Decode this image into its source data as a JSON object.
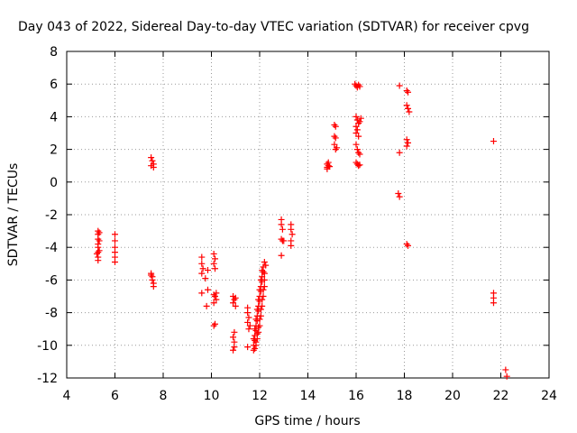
{
  "chart_data": {
    "type": "scatter",
    "title": "Day 043 of 2022, Sidereal Day-to-day VTEC variation (SDTVAR) for receiver cpvg",
    "xlabel": "GPS time / hours",
    "ylabel": "SDTVAR / TECUs",
    "xlim": [
      4,
      24
    ],
    "ylim": [
      -12,
      8
    ],
    "xticks": [
      4,
      6,
      8,
      10,
      12,
      14,
      16,
      18,
      20,
      22,
      24
    ],
    "yticks": [
      -12,
      -10,
      -8,
      -6,
      -4,
      -2,
      0,
      2,
      4,
      6,
      8
    ],
    "grid": true,
    "marker": "+",
    "color": "#ff0000",
    "series": [
      {
        "name": "SDTVAR",
        "points": [
          [
            5.3,
            -3.0
          ],
          [
            5.3,
            -3.2
          ],
          [
            5.3,
            -3.5
          ],
          [
            5.3,
            -3.8
          ],
          [
            5.3,
            -4.0
          ],
          [
            5.3,
            -4.3
          ],
          [
            5.3,
            -4.6
          ],
          [
            5.3,
            -4.8
          ],
          [
            5.35,
            -3.1
          ],
          [
            5.35,
            -3.6
          ],
          [
            5.35,
            -4.2
          ],
          [
            5.25,
            -4.4
          ],
          [
            6.0,
            -3.2
          ],
          [
            6.0,
            -3.6
          ],
          [
            6.0,
            -4.0
          ],
          [
            6.0,
            -4.3
          ],
          [
            6.0,
            -4.6
          ],
          [
            6.0,
            -4.9
          ],
          [
            7.5,
            1.5
          ],
          [
            7.55,
            1.3
          ],
          [
            7.6,
            1.1
          ],
          [
            7.6,
            0.9
          ],
          [
            7.5,
            1.0
          ],
          [
            7.5,
            -5.6
          ],
          [
            7.55,
            -5.8
          ],
          [
            7.55,
            -6.0
          ],
          [
            7.6,
            -6.2
          ],
          [
            7.6,
            -6.4
          ],
          [
            7.5,
            -5.7
          ],
          [
            9.6,
            -4.6
          ],
          [
            9.6,
            -5.0
          ],
          [
            9.65,
            -5.3
          ],
          [
            9.6,
            -5.6
          ],
          [
            9.6,
            -6.8
          ],
          [
            9.75,
            -5.9
          ],
          [
            9.85,
            -6.6
          ],
          [
            9.8,
            -7.6
          ],
          [
            9.85,
            -5.4
          ],
          [
            10.1,
            -4.4
          ],
          [
            10.15,
            -4.7
          ],
          [
            10.1,
            -5.0
          ],
          [
            10.15,
            -5.3
          ],
          [
            10.1,
            -6.9
          ],
          [
            10.15,
            -7.0
          ],
          [
            10.2,
            -7.2
          ],
          [
            10.1,
            -7.4
          ],
          [
            10.15,
            -8.7
          ],
          [
            10.1,
            -8.8
          ],
          [
            10.2,
            -6.8
          ],
          [
            10.9,
            -7.0
          ],
          [
            10.95,
            -7.2
          ],
          [
            10.9,
            -7.4
          ],
          [
            11.0,
            -7.6
          ],
          [
            10.95,
            -9.2
          ],
          [
            10.9,
            -9.5
          ],
          [
            10.95,
            -9.8
          ],
          [
            10.95,
            -10.1
          ],
          [
            10.9,
            -10.3
          ],
          [
            11.0,
            -7.1
          ],
          [
            11.5,
            -7.7
          ],
          [
            11.5,
            -8.0
          ],
          [
            11.55,
            -8.3
          ],
          [
            11.5,
            -8.6
          ],
          [
            11.55,
            -9.0
          ],
          [
            11.5,
            -10.1
          ],
          [
            11.6,
            -8.8
          ],
          [
            11.75,
            -10.3
          ],
          [
            11.75,
            -10.0
          ],
          [
            11.8,
            -9.7
          ],
          [
            11.8,
            -9.4
          ],
          [
            11.85,
            -9.1
          ],
          [
            11.85,
            -8.8
          ],
          [
            11.9,
            -8.5
          ],
          [
            11.9,
            -8.2
          ],
          [
            11.95,
            -7.9
          ],
          [
            11.95,
            -7.6
          ],
          [
            12.0,
            -7.3
          ],
          [
            12.0,
            -7.0
          ],
          [
            12.05,
            -6.7
          ],
          [
            12.05,
            -6.4
          ],
          [
            12.1,
            -6.1
          ],
          [
            12.1,
            -5.8
          ],
          [
            12.15,
            -5.5
          ],
          [
            12.15,
            -5.2
          ],
          [
            12.2,
            -4.9
          ],
          [
            11.8,
            -10.2
          ],
          [
            11.85,
            -9.8
          ],
          [
            11.9,
            -9.3
          ],
          [
            11.95,
            -8.9
          ],
          [
            12.0,
            -8.4
          ],
          [
            12.05,
            -7.8
          ],
          [
            12.1,
            -7.2
          ],
          [
            12.15,
            -6.6
          ],
          [
            12.2,
            -6.0
          ],
          [
            11.75,
            -9.6
          ],
          [
            11.8,
            -9.0
          ],
          [
            11.85,
            -8.4
          ],
          [
            11.9,
            -7.8
          ],
          [
            11.95,
            -7.2
          ],
          [
            12.0,
            -6.6
          ],
          [
            12.05,
            -6.0
          ],
          [
            12.1,
            -5.4
          ],
          [
            11.85,
            -10.0
          ],
          [
            11.9,
            -9.6
          ],
          [
            11.95,
            -9.2
          ],
          [
            12.0,
            -8.8
          ],
          [
            12.05,
            -8.2
          ],
          [
            12.1,
            -7.6
          ],
          [
            12.15,
            -7.0
          ],
          [
            12.2,
            -6.4
          ],
          [
            12.2,
            -5.6
          ],
          [
            12.25,
            -5.1
          ],
          [
            12.9,
            -2.3
          ],
          [
            12.9,
            -2.6
          ],
          [
            12.95,
            -2.9
          ],
          [
            12.9,
            -3.5
          ],
          [
            12.95,
            -3.6
          ],
          [
            13.0,
            -3.6
          ],
          [
            12.9,
            -4.5
          ],
          [
            13.3,
            -2.6
          ],
          [
            13.3,
            -2.9
          ],
          [
            13.35,
            -3.2
          ],
          [
            13.3,
            -3.6
          ],
          [
            13.3,
            -3.9
          ],
          [
            14.8,
            0.8
          ],
          [
            14.8,
            0.9
          ],
          [
            14.85,
            1.0
          ],
          [
            14.8,
            1.1
          ],
          [
            14.85,
            1.2
          ],
          [
            14.9,
            0.95
          ],
          [
            15.1,
            3.5
          ],
          [
            15.15,
            3.4
          ],
          [
            15.1,
            2.8
          ],
          [
            15.15,
            2.7
          ],
          [
            15.1,
            2.3
          ],
          [
            15.15,
            2.0
          ],
          [
            15.2,
            2.1
          ],
          [
            15.95,
            6.0
          ],
          [
            16.0,
            5.9
          ],
          [
            16.05,
            5.8
          ],
          [
            16.1,
            5.95
          ],
          [
            16.15,
            5.85
          ],
          [
            16.0,
            4.0
          ],
          [
            16.05,
            3.8
          ],
          [
            16.1,
            3.6
          ],
          [
            16.0,
            3.4
          ],
          [
            16.05,
            3.2
          ],
          [
            16.0,
            3.0
          ],
          [
            16.1,
            2.8
          ],
          [
            16.15,
            3.7
          ],
          [
            16.2,
            3.9
          ],
          [
            16.0,
            2.3
          ],
          [
            16.05,
            2.0
          ],
          [
            16.1,
            1.8
          ],
          [
            16.15,
            1.7
          ],
          [
            16.0,
            1.2
          ],
          [
            16.05,
            1.1
          ],
          [
            16.1,
            1.0
          ],
          [
            16.15,
            1.05
          ],
          [
            17.8,
            5.9
          ],
          [
            17.8,
            1.8
          ],
          [
            17.75,
            -0.7
          ],
          [
            17.8,
            -0.9
          ],
          [
            18.1,
            5.6
          ],
          [
            18.15,
            5.5
          ],
          [
            18.1,
            4.7
          ],
          [
            18.15,
            4.5
          ],
          [
            18.2,
            4.3
          ],
          [
            18.1,
            2.6
          ],
          [
            18.15,
            2.4
          ],
          [
            18.1,
            2.2
          ],
          [
            18.1,
            -3.8
          ],
          [
            18.15,
            -3.9
          ],
          [
            21.7,
            2.5
          ],
          [
            21.7,
            -6.8
          ],
          [
            21.7,
            -7.1
          ],
          [
            21.7,
            -7.4
          ],
          [
            22.2,
            -11.5
          ],
          [
            22.25,
            -11.9
          ]
        ]
      }
    ]
  }
}
